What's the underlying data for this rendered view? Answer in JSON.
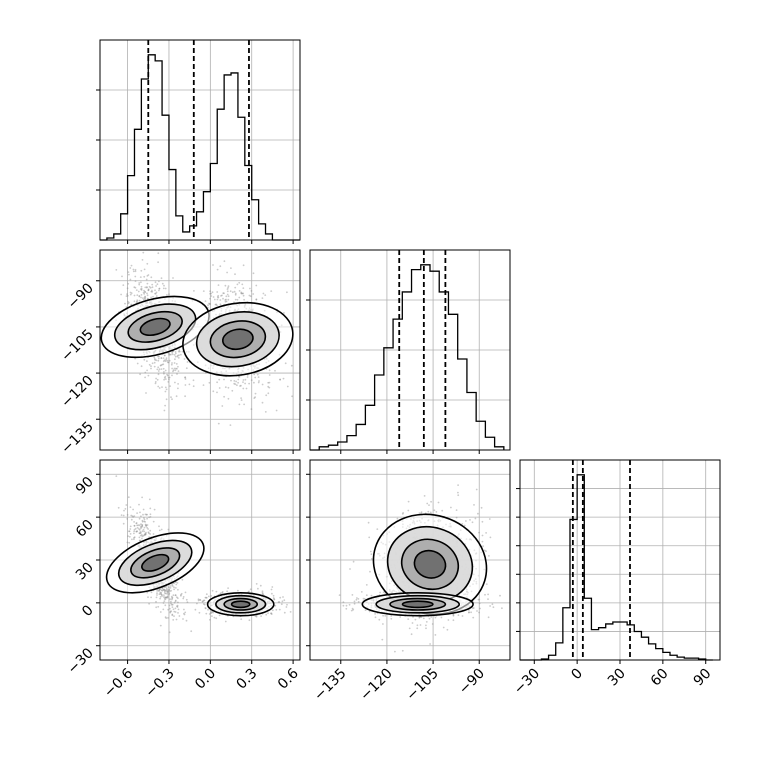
{
  "chart_data": {
    "type": "corner",
    "variables": [
      "",
      "",
      ""
    ],
    "colors": {
      "line": "#000000",
      "grid": "#b0b0b0",
      "scatter": "#8c8c8c",
      "background": "#ffffff"
    },
    "grid": true,
    "panels": [
      {
        "id": "hist-0",
        "type": "histogram",
        "variable": 0,
        "xlim": [
          -0.8,
          0.65
        ],
        "bin_edges": [
          -0.8,
          -0.75,
          -0.7,
          -0.65,
          -0.6,
          -0.55,
          -0.5,
          -0.45,
          -0.4,
          -0.35,
          -0.3,
          -0.25,
          -0.2,
          -0.15,
          -0.1,
          -0.05,
          0.0,
          0.05,
          0.1,
          0.15,
          0.2,
          0.25,
          0.3,
          0.35,
          0.4,
          0.45,
          0.5,
          0.55,
          0.6,
          0.65
        ],
        "counts": [
          0,
          1,
          3,
          13,
          32,
          55,
          80,
          92,
          89,
          62,
          35,
          12,
          4,
          7,
          14,
          24,
          38,
          65,
          82,
          83,
          61,
          37,
          20,
          8,
          3,
          0,
          0,
          0,
          0
        ],
        "quantile_lines": [
          -0.45,
          -0.12,
          0.28
        ],
        "y_gridlines": 3
      },
      {
        "id": "scatter-1-0",
        "type": "scatter_contour",
        "variables": [
          0,
          1
        ],
        "xlim": [
          -0.8,
          0.65
        ],
        "ylim": [
          -145,
          -80
        ],
        "yticks": [
          -90,
          -105,
          -120,
          -135
        ],
        "ytick_labels": [
          "−90",
          "−105",
          "−120",
          "−135"
        ],
        "clusters": [
          {
            "center": [
              -0.4,
              -105
            ],
            "spread": [
              0.1,
              9
            ],
            "corr": -0.45,
            "weight": 0.5
          },
          {
            "center": [
              0.2,
              -109
            ],
            "spread": [
              0.13,
              9
            ],
            "corr": -0.15,
            "weight": 0.5
          }
        ]
      },
      {
        "id": "hist-1",
        "type": "histogram",
        "variable": 1,
        "xlim": [
          -145,
          -80
        ],
        "bin_edges": [
          -145,
          -142,
          -139,
          -136,
          -133,
          -130,
          -127,
          -124,
          -121,
          -118,
          -115,
          -112,
          -109,
          -106,
          -103,
          -100,
          -97,
          -94,
          -91,
          -88,
          -85,
          -82
        ],
        "counts": [
          0,
          2,
          3,
          5,
          9,
          16,
          28,
          47,
          64,
          82,
          99,
          113,
          116,
          112,
          99,
          85,
          57,
          36,
          18,
          8,
          2
        ],
        "quantile_lines": [
          -116,
          -108,
          -101
        ],
        "y_gridlines": 3
      },
      {
        "id": "scatter-2-0",
        "type": "scatter_contour",
        "variables": [
          0,
          2
        ],
        "xlim": [
          -0.8,
          0.65
        ],
        "ylim": [
          -40,
          100
        ],
        "xticks": [
          -0.6,
          -0.3,
          0.0,
          0.3,
          0.6
        ],
        "xtick_labels": [
          "−0.6",
          "−0.3",
          "0.0",
          "0.3",
          "0.6"
        ],
        "yticks": [
          -30,
          0,
          30,
          60,
          90
        ],
        "ytick_labels": [
          "−30",
          "0",
          "30",
          "60",
          "90"
        ],
        "clusters": [
          {
            "center": [
              -0.4,
              28
            ],
            "spread": [
              0.09,
              18
            ],
            "corr": -0.75,
            "weight": 0.5
          },
          {
            "center": [
              0.22,
              -1
            ],
            "spread": [
              0.12,
              4
            ],
            "corr": 0.0,
            "weight": 0.5
          }
        ]
      },
      {
        "id": "scatter-2-1",
        "type": "scatter_contour",
        "variables": [
          1,
          2
        ],
        "xlim": [
          -145,
          -80
        ],
        "ylim": [
          -40,
          100
        ],
        "xticks": [
          -135,
          -120,
          -105,
          -90
        ],
        "xtick_labels": [
          "−135",
          "−120",
          "−105",
          "−90"
        ],
        "clusters": [
          {
            "center": [
              -106,
              27
            ],
            "spread": [
              8,
              20
            ],
            "corr": 0.1,
            "weight": 0.5
          },
          {
            "center": [
              -110,
              -1
            ],
            "spread": [
              9,
              4
            ],
            "corr": 0.0,
            "weight": 0.5
          }
        ]
      },
      {
        "id": "hist-2",
        "type": "histogram",
        "variable": 2,
        "xlim": [
          -40,
          100
        ],
        "xticks": [
          -30,
          0,
          30,
          60,
          90
        ],
        "xtick_labels": [
          "−30",
          "0",
          "30",
          "60",
          "90"
        ],
        "bin_edges": [
          -40,
          -35,
          -30,
          -25,
          -20,
          -15,
          -10,
          -5,
          0,
          5,
          10,
          15,
          20,
          25,
          30,
          35,
          40,
          45,
          50,
          55,
          60,
          65,
          70,
          75,
          80,
          85,
          90,
          95
        ],
        "counts": [
          0,
          0,
          0,
          1,
          5,
          18,
          55,
          148,
          195,
          65,
          32,
          34,
          38,
          40,
          40,
          37,
          30,
          24,
          17,
          12,
          8,
          5,
          3,
          2,
          2,
          1,
          0
        ],
        "quantile_lines": [
          -3,
          4,
          37
        ],
        "y_gridlines": 6
      }
    ]
  }
}
